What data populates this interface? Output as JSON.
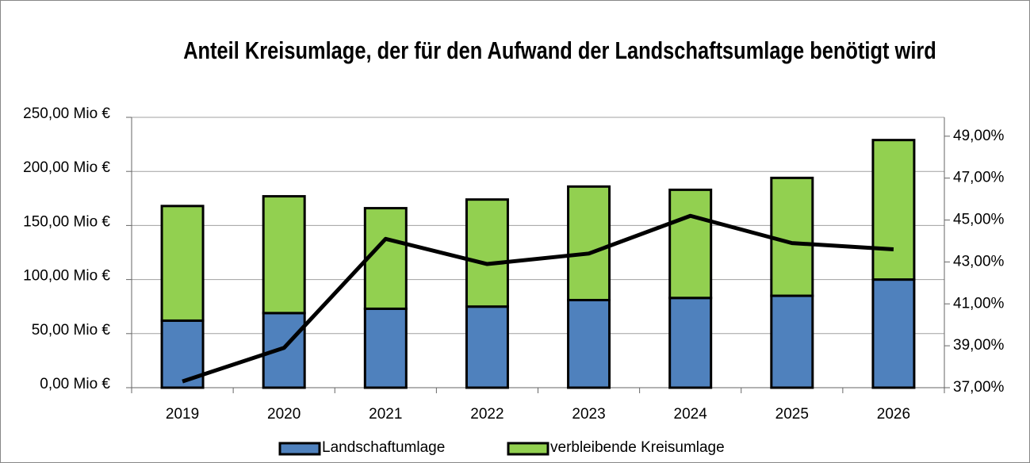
{
  "chart_data": {
    "type": "bar",
    "title": "Anteil Kreisumlage, der für den Aufwand der Landschaftsumlage benötigt wird",
    "categories": [
      "2019",
      "2020",
      "2021",
      "2022",
      "2023",
      "2024",
      "2025",
      "2026"
    ],
    "stacked": true,
    "series": [
      {
        "name": "Landschaftumlage",
        "color": "#4f81bd",
        "values": [
          62,
          69,
          73,
          75,
          81,
          83,
          85,
          100
        ]
      },
      {
        "name": "verbleibende Kreisumlage",
        "color": "#92d050",
        "values": [
          106,
          108,
          93,
          99,
          105,
          100,
          109,
          129
        ]
      },
      {
        "type": "line",
        "axis": "y2",
        "color": "#000000",
        "values": [
          37.3,
          38.9,
          44.1,
          42.9,
          43.4,
          45.2,
          43.9,
          43.6
        ]
      }
    ],
    "ylim": [
      0,
      250
    ],
    "yticks": [
      {
        "value": 0,
        "label": "0,00 Mio €"
      },
      {
        "value": 50,
        "label": "50,00 Mio €"
      },
      {
        "value": 100,
        "label": "100,00 Mio €"
      },
      {
        "value": 150,
        "label": "150,00 Mio €"
      },
      {
        "value": 200,
        "label": "200,00 Mio €"
      },
      {
        "value": 250,
        "label": "250,00 Mio €"
      }
    ],
    "y2lim": [
      37,
      49.9
    ],
    "y2ticks": [
      {
        "value": 37,
        "label": "37,00%"
      },
      {
        "value": 39,
        "label": "39,00%"
      },
      {
        "value": 41,
        "label": "41,00%"
      },
      {
        "value": 43,
        "label": "43,00%"
      },
      {
        "value": 45,
        "label": "45,00%"
      },
      {
        "value": 47,
        "label": "47,00%"
      },
      {
        "value": 49,
        "label": "49,00%"
      }
    ],
    "grid": true,
    "legend": "bottom"
  }
}
